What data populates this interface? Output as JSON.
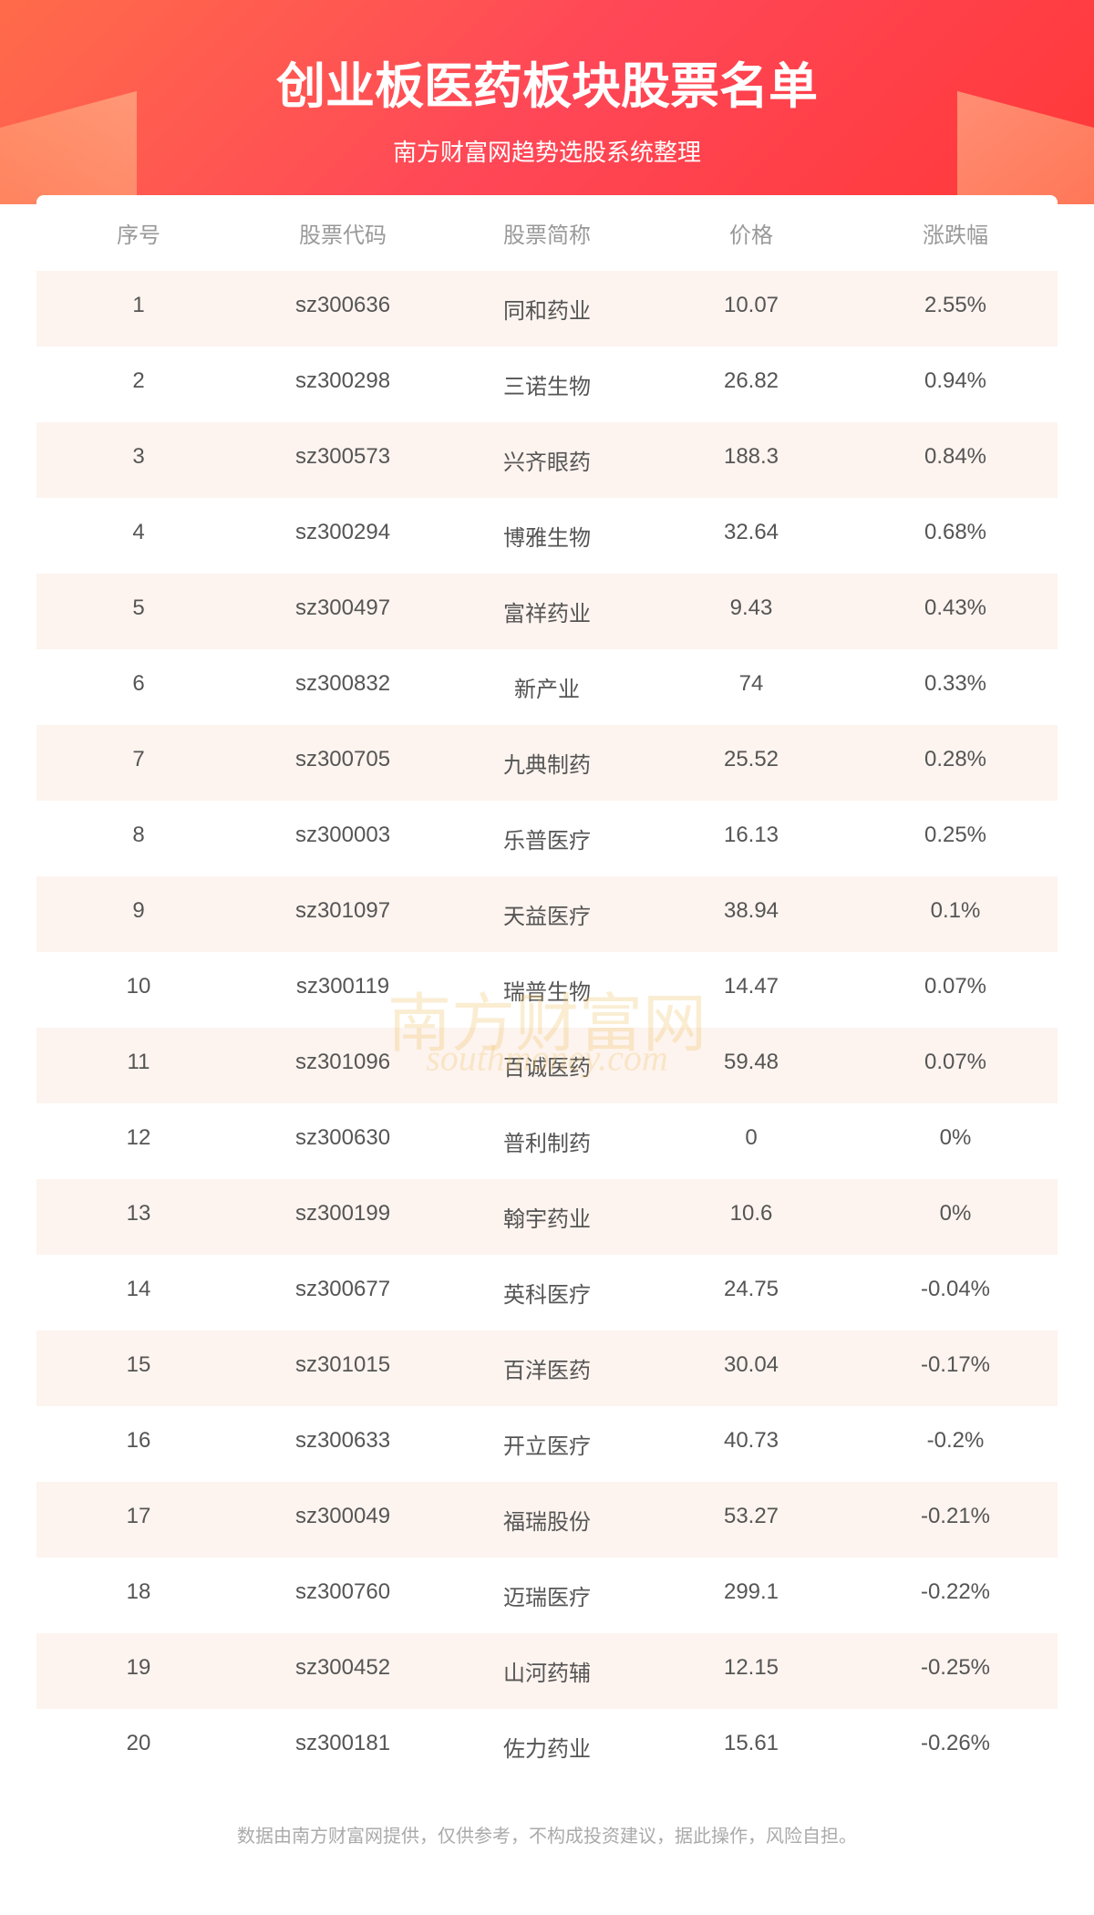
{
  "header": {
    "title": "创业板医药板块股票名单",
    "subtitle": "南方财富网趋势选股系统整理",
    "title_color": "#ffffff",
    "title_fontsize": 54,
    "subtitle_fontsize": 26,
    "bg_gradient_start": "#ff6b4a",
    "bg_gradient_mid": "#ff4757",
    "bg_gradient_end": "#ff3838"
  },
  "table": {
    "columns": [
      "序号",
      "股票代码",
      "股票简称",
      "价格",
      "涨跌幅"
    ],
    "header_color": "#999999",
    "header_fontsize": 24,
    "cell_color": "#555555",
    "cell_fontsize": 24,
    "row_bg_odd": "#fdf4ef",
    "row_bg_even": "#ffffff",
    "rows": [
      {
        "idx": "1",
        "code": "sz300636",
        "name": "同和药业",
        "price": "10.07",
        "change": "2.55%"
      },
      {
        "idx": "2",
        "code": "sz300298",
        "name": "三诺生物",
        "price": "26.82",
        "change": "0.94%"
      },
      {
        "idx": "3",
        "code": "sz300573",
        "name": "兴齐眼药",
        "price": "188.3",
        "change": "0.84%"
      },
      {
        "idx": "4",
        "code": "sz300294",
        "name": "博雅生物",
        "price": "32.64",
        "change": "0.68%"
      },
      {
        "idx": "5",
        "code": "sz300497",
        "name": "富祥药业",
        "price": "9.43",
        "change": "0.43%"
      },
      {
        "idx": "6",
        "code": "sz300832",
        "name": "新产业",
        "price": "74",
        "change": "0.33%"
      },
      {
        "idx": "7",
        "code": "sz300705",
        "name": "九典制药",
        "price": "25.52",
        "change": "0.28%"
      },
      {
        "idx": "8",
        "code": "sz300003",
        "name": "乐普医疗",
        "price": "16.13",
        "change": "0.25%"
      },
      {
        "idx": "9",
        "code": "sz301097",
        "name": "天益医疗",
        "price": "38.94",
        "change": "0.1%"
      },
      {
        "idx": "10",
        "code": "sz300119",
        "name": "瑞普生物",
        "price": "14.47",
        "change": "0.07%"
      },
      {
        "idx": "11",
        "code": "sz301096",
        "name": "百诚医药",
        "price": "59.48",
        "change": "0.07%"
      },
      {
        "idx": "12",
        "code": "sz300630",
        "name": "普利制药",
        "price": "0",
        "change": "0%"
      },
      {
        "idx": "13",
        "code": "sz300199",
        "name": "翰宇药业",
        "price": "10.6",
        "change": "0%"
      },
      {
        "idx": "14",
        "code": "sz300677",
        "name": "英科医疗",
        "price": "24.75",
        "change": "-0.04%"
      },
      {
        "idx": "15",
        "code": "sz301015",
        "name": "百洋医药",
        "price": "30.04",
        "change": "-0.17%"
      },
      {
        "idx": "16",
        "code": "sz300633",
        "name": "开立医疗",
        "price": "40.73",
        "change": "-0.2%"
      },
      {
        "idx": "17",
        "code": "sz300049",
        "name": "福瑞股份",
        "price": "53.27",
        "change": "-0.21%"
      },
      {
        "idx": "18",
        "code": "sz300760",
        "name": "迈瑞医疗",
        "price": "299.1",
        "change": "-0.22%"
      },
      {
        "idx": "19",
        "code": "sz300452",
        "name": "山河药辅",
        "price": "12.15",
        "change": "-0.25%"
      },
      {
        "idx": "20",
        "code": "sz300181",
        "name": "佐力药业",
        "price": "15.61",
        "change": "-0.26%"
      }
    ]
  },
  "watermark": {
    "text_main": "南方财富网",
    "text_sub": "southmoney.com",
    "color": "#f0c060",
    "opacity": 0.28
  },
  "footer": {
    "text": "数据由南方财富网提供，仅供参考，不构成投资建议，据此操作，风险自担。",
    "color": "#aaaaaa",
    "fontsize": 20
  }
}
